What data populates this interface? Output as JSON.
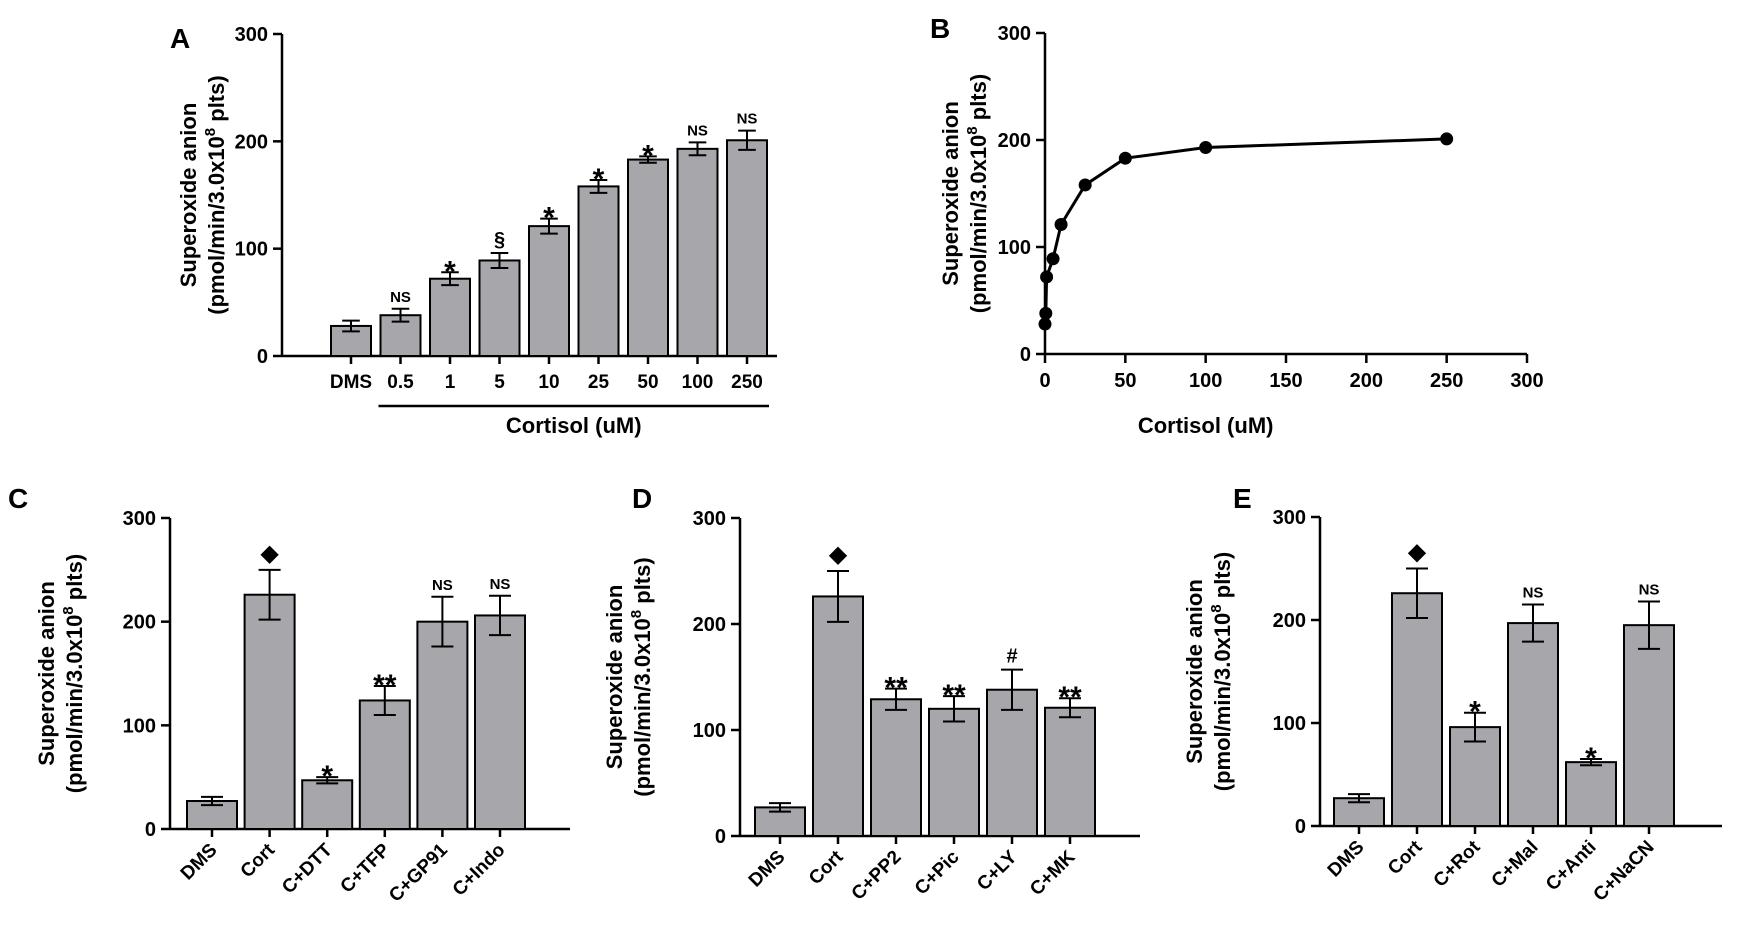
{
  "chart_data": [
    {
      "panel": "A",
      "type": "bar",
      "categories": [
        "DMS",
        "0.5",
        "1",
        "5",
        "10",
        "25",
        "50",
        "100",
        "250"
      ],
      "values": [
        28,
        38,
        72,
        89,
        121,
        158,
        183,
        193,
        201
      ],
      "errors": [
        5,
        6,
        6,
        7,
        7,
        6,
        3,
        6,
        9
      ],
      "annotations": [
        "",
        "NS",
        "*",
        "§",
        "*",
        "*",
        "*",
        "NS",
        "NS"
      ],
      "ylabel_line1": "Superoxide anion",
      "ylabel_line2": "(pmol/min/3.0x10",
      "ylabel_sup": "8",
      "ylabel_end": " plts)",
      "group_label": "Cortisol (uM)",
      "ylim": [
        0,
        300
      ],
      "yticks": [
        0,
        100,
        200,
        300
      ]
    },
    {
      "panel": "B",
      "type": "line",
      "x": [
        0,
        0.5,
        1,
        5,
        10,
        25,
        50,
        100,
        250
      ],
      "y": [
        28,
        38,
        72,
        89,
        121,
        158,
        183,
        193,
        201
      ],
      "ylabel_line1": "Superoxide anion",
      "ylabel_line2": "(pmol/min/3.0x10",
      "ylabel_sup": "8",
      "ylabel_end": " plts)",
      "xlabel": "Cortisol (uM)",
      "xlim": [
        0,
        300
      ],
      "xticks": [
        0,
        50,
        100,
        150,
        200,
        250,
        300
      ],
      "ylim": [
        0,
        300
      ],
      "yticks": [
        0,
        100,
        200,
        300
      ]
    },
    {
      "panel": "C",
      "type": "bar",
      "categories": [
        "DMS",
        "Cort",
        "C+DTT",
        "C+TFP",
        "C+GP91",
        "C+Indo"
      ],
      "values": [
        27,
        226,
        47,
        124,
        200,
        206
      ],
      "errors": [
        4,
        24,
        3,
        14,
        24,
        19
      ],
      "annotations": [
        "",
        "◆",
        "*",
        "**",
        "NS",
        "NS"
      ],
      "ylabel_line1": "Superoxide anion",
      "ylabel_line2": "(pmol/min/3.0x10",
      "ylabel_sup": "8",
      "ylabel_end": " plts)",
      "ylim": [
        0,
        300
      ],
      "yticks": [
        0,
        100,
        200,
        300
      ]
    },
    {
      "panel": "D",
      "type": "bar",
      "categories": [
        "DMS",
        "Cort",
        "C+PP2",
        "C+Pic",
        "C+LY",
        "C+MK"
      ],
      "values": [
        27,
        226,
        129,
        120,
        138,
        121
      ],
      "errors": [
        4,
        24,
        10,
        12,
        19,
        9
      ],
      "annotations": [
        "",
        "◆",
        "**",
        "**",
        "#",
        "**"
      ],
      "ylabel_line1": "Superoxide anion",
      "ylabel_line2": "(pmol/min/3.0x10",
      "ylabel_sup": "8",
      "ylabel_end": " plts)",
      "ylim": [
        0,
        300
      ],
      "yticks": [
        0,
        100,
        200,
        300
      ]
    },
    {
      "panel": "E",
      "type": "bar",
      "categories": [
        "DMS",
        "Cort",
        "C+Rot",
        "C+Mal",
        "C+Anti",
        "C+NaCN"
      ],
      "values": [
        27,
        226,
        96,
        197,
        62,
        195
      ],
      "errors": [
        4,
        24,
        14,
        18,
        3,
        23
      ],
      "annotations": [
        "",
        "◆",
        "*",
        "NS",
        "*",
        "NS"
      ],
      "ylabel_line1": "Superoxide anion",
      "ylabel_line2": "(pmol/min/3.0x10",
      "ylabel_sup": "8",
      "ylabel_end": " plts)",
      "ylim": [
        0,
        300
      ],
      "yticks": [
        0,
        100,
        200,
        300
      ]
    }
  ],
  "colors": {
    "bar_fill": "#a6a6ab",
    "stroke": "#000000"
  }
}
